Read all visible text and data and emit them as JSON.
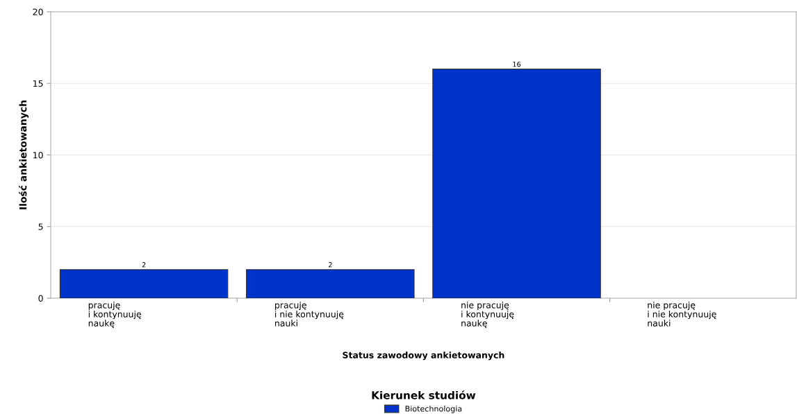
{
  "chart_data": {
    "type": "bar",
    "xlabel": "Status zawodowy ankietowanych",
    "ylabel": "Ilość ankietowanych",
    "legend_title": "Kierunek studiów",
    "categories": [
      "pracuję\ni kontynuuję\nnaukę",
      "pracuję\ni nie kontynuuję\nnauki",
      "nie pracuję\ni kontynuuję\nnaukę",
      "nie pracuję\ni nie kontynuuję\nnauki"
    ],
    "series": [
      {
        "name": "Biotechnologia",
        "color": "#0033cc",
        "values": [
          2,
          2,
          16,
          0
        ],
        "value_labels": [
          "2",
          "2",
          "16",
          null
        ]
      }
    ],
    "ylim": [
      0,
      20
    ],
    "yticks": [
      0,
      5,
      10,
      15,
      20
    ],
    "grid": "y",
    "legend": "bottom"
  }
}
